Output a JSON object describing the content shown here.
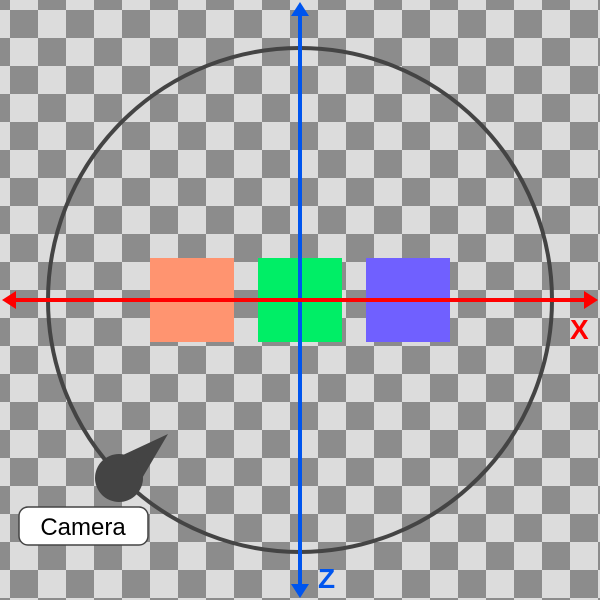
{
  "scene": {
    "axes": {
      "x": {
        "label": "X",
        "color": "#ff0000"
      },
      "z": {
        "label": "Z",
        "color": "#0055ee"
      }
    },
    "orbit_color": "#444444",
    "boxes": [
      {
        "name": "orange-box",
        "color": "#ff9470"
      },
      {
        "name": "green-box",
        "color": "#00ee66"
      },
      {
        "name": "blue-box",
        "color": "#7060ff"
      }
    ],
    "camera": {
      "label": "Camera",
      "color": "#444444"
    },
    "checker": {
      "light": "#dcdcdc",
      "dark": "#8c8c8c"
    }
  }
}
